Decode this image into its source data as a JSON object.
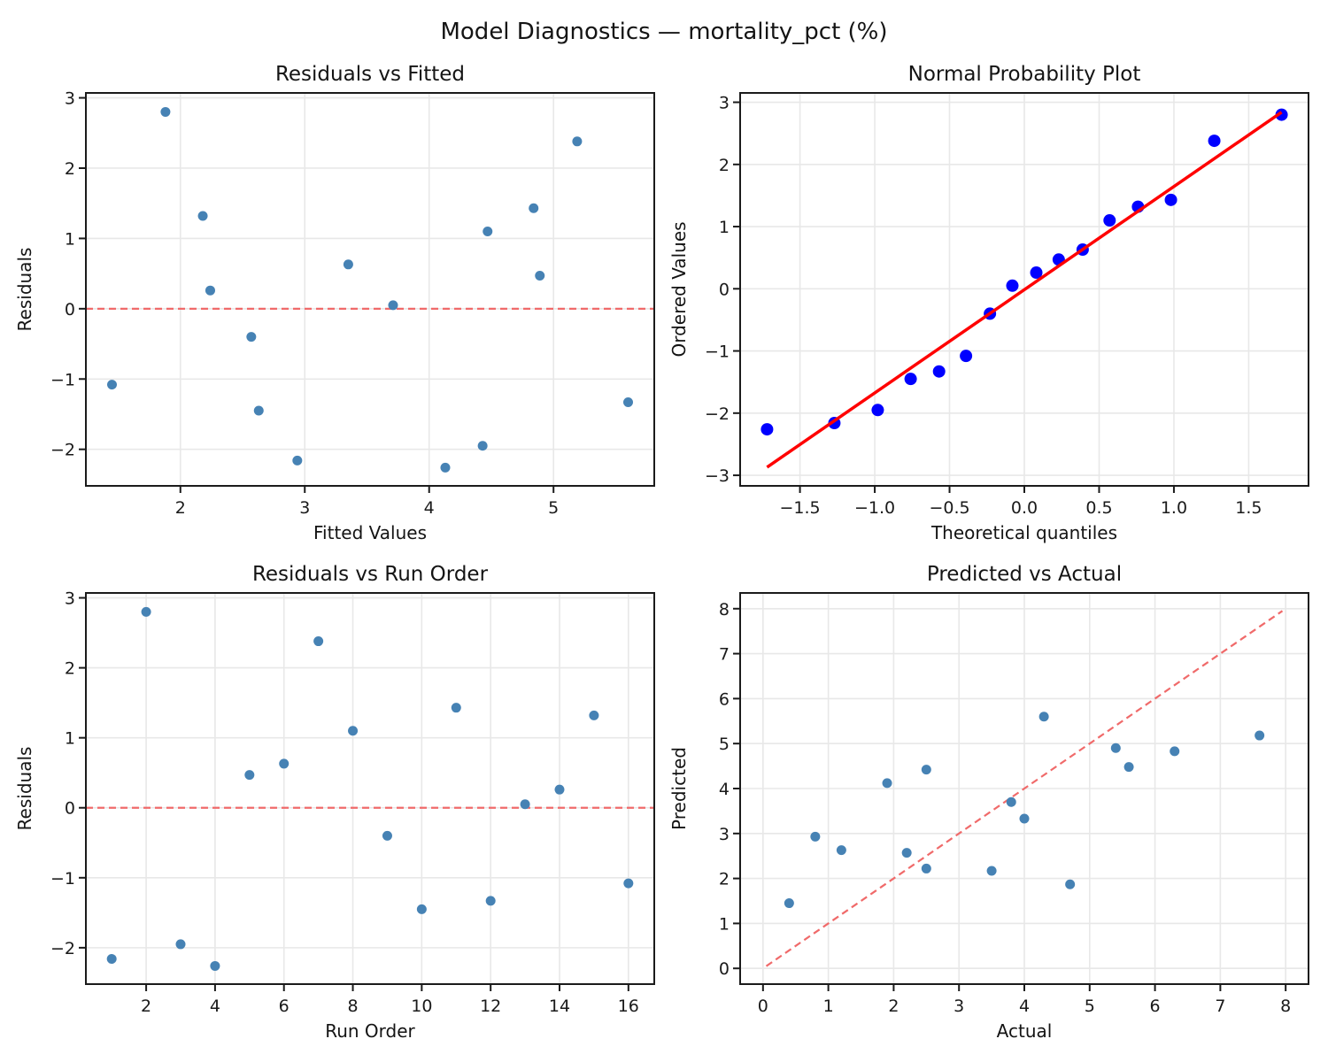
{
  "figure": {
    "suptitle": "Model Diagnostics — mortality_pct (%)",
    "colors": {
      "background": "#FFFFFF",
      "scatter_blue": "#4682B4",
      "qq_marker_blue": "#0000FF",
      "qq_line_red": "#FF0000",
      "refline_red": "#F06A6A",
      "grid": "#E8E8E8",
      "frame": "#1B1B1B",
      "text": "#141414"
    }
  },
  "chart_data": [
    {
      "id": "residuals-vs-fitted",
      "type": "scatter",
      "title": "Residuals vs Fitted",
      "xlabel": "Fitted Values",
      "ylabel": "Residuals",
      "xlim": [
        1.24,
        5.81
      ],
      "ylim": [
        -2.52,
        3.07
      ],
      "xticks": [
        2,
        3,
        4,
        5
      ],
      "xtick_labels": [
        "2",
        "3",
        "4",
        "5"
      ],
      "yticks": [
        -2,
        -1,
        0,
        1,
        2,
        3
      ],
      "ytick_labels": [
        "−2",
        "−1",
        "0",
        "1",
        "2",
        "3"
      ],
      "grid": true,
      "legend": null,
      "marker": {
        "shape": "circle",
        "color": "#4682B4",
        "radius": 5.5
      },
      "points": [
        [
          2.94,
          -2.16
        ],
        [
          1.88,
          2.8
        ],
        [
          4.43,
          -1.95
        ],
        [
          4.13,
          -2.26
        ],
        [
          4.89,
          0.47
        ],
        [
          3.35,
          0.63
        ],
        [
          5.19,
          2.38
        ],
        [
          4.47,
          1.1
        ],
        [
          2.57,
          -0.4
        ],
        [
          2.63,
          -1.45
        ],
        [
          4.84,
          1.43
        ],
        [
          5.6,
          -1.33
        ],
        [
          3.71,
          0.05
        ],
        [
          2.24,
          0.26
        ],
        [
          2.18,
          1.32
        ],
        [
          1.45,
          -1.08
        ]
      ],
      "lines": [
        {
          "name": "zero-line",
          "from": [
            1.24,
            0
          ],
          "to": [
            5.81,
            0
          ],
          "color": "#F06A6A",
          "width": 2.2,
          "dash": "8 5",
          "on_top": false
        }
      ]
    },
    {
      "id": "normal-probability-plot",
      "type": "scatter",
      "title": "Normal Probability Plot",
      "xlabel": "Theoretical quantiles",
      "ylabel": "Ordered Values",
      "xlim": [
        -1.9,
        1.9
      ],
      "ylim": [
        -3.17,
        3.15
      ],
      "xticks": [
        -1.5,
        -1.0,
        -0.5,
        0.0,
        0.5,
        1.0,
        1.5
      ],
      "xtick_labels": [
        "−1.5",
        "−1.0",
        "−0.5",
        "0.0",
        "0.5",
        "1.0",
        "1.5"
      ],
      "yticks": [
        -3,
        -2,
        -1,
        0,
        1,
        2,
        3
      ],
      "ytick_labels": [
        "−3",
        "−2",
        "−1",
        "0",
        "1",
        "2",
        "3"
      ],
      "grid": true,
      "legend": null,
      "marker": {
        "shape": "circle",
        "color": "#0000FF",
        "radius": 7
      },
      "points": [
        [
          -1.72,
          -2.26
        ],
        [
          -1.27,
          -2.16
        ],
        [
          -0.98,
          -1.95
        ],
        [
          -0.76,
          -1.45
        ],
        [
          -0.57,
          -1.33
        ],
        [
          -0.39,
          -1.08
        ],
        [
          -0.23,
          -0.4
        ],
        [
          -0.08,
          0.05
        ],
        [
          0.08,
          0.26
        ],
        [
          0.23,
          0.47
        ],
        [
          0.39,
          0.63
        ],
        [
          0.57,
          1.1
        ],
        [
          0.76,
          1.32
        ],
        [
          0.98,
          1.43
        ],
        [
          1.27,
          2.38
        ],
        [
          1.72,
          2.8
        ]
      ],
      "lines": [
        {
          "name": "fit-line",
          "from": [
            -1.72,
            -2.87
          ],
          "to": [
            1.72,
            2.84
          ],
          "color": "#FF0000",
          "width": 3.5,
          "dash": null,
          "on_top": true
        }
      ]
    },
    {
      "id": "residuals-vs-run-order",
      "type": "scatter",
      "title": "Residuals vs Run Order",
      "xlabel": "Run Order",
      "ylabel": "Residuals",
      "xlim": [
        0.25,
        16.75
      ],
      "ylim": [
        -2.52,
        3.07
      ],
      "xticks": [
        2,
        4,
        6,
        8,
        10,
        12,
        14,
        16
      ],
      "xtick_labels": [
        "2",
        "4",
        "6",
        "8",
        "10",
        "12",
        "14",
        "16"
      ],
      "yticks": [
        -2,
        -1,
        0,
        1,
        2,
        3
      ],
      "ytick_labels": [
        "−2",
        "−1",
        "0",
        "1",
        "2",
        "3"
      ],
      "grid": true,
      "legend": null,
      "marker": {
        "shape": "circle",
        "color": "#4682B4",
        "radius": 5.5
      },
      "points": [
        [
          1,
          -2.16
        ],
        [
          2,
          2.8
        ],
        [
          3,
          -1.95
        ],
        [
          4,
          -2.26
        ],
        [
          5,
          0.47
        ],
        [
          6,
          0.63
        ],
        [
          7,
          2.38
        ],
        [
          8,
          1.1
        ],
        [
          9,
          -0.4
        ],
        [
          10,
          -1.45
        ],
        [
          11,
          1.43
        ],
        [
          12,
          -1.33
        ],
        [
          13,
          0.05
        ],
        [
          14,
          0.26
        ],
        [
          15,
          1.32
        ],
        [
          16,
          -1.08
        ]
      ],
      "lines": [
        {
          "name": "zero-line",
          "from": [
            0.25,
            0
          ],
          "to": [
            16.75,
            0
          ],
          "color": "#F06A6A",
          "width": 2.2,
          "dash": "8 5",
          "on_top": false
        }
      ]
    },
    {
      "id": "predicted-vs-actual",
      "type": "scatter",
      "title": "Predicted vs Actual",
      "xlabel": "Actual",
      "ylabel": "Predicted",
      "xlim": [
        -0.35,
        8.35
      ],
      "ylim": [
        -0.35,
        8.35
      ],
      "xticks": [
        0,
        1,
        2,
        3,
        4,
        5,
        6,
        7,
        8
      ],
      "xtick_labels": [
        "0",
        "1",
        "2",
        "3",
        "4",
        "5",
        "6",
        "7",
        "8"
      ],
      "yticks": [
        0,
        1,
        2,
        3,
        4,
        5,
        6,
        7,
        8
      ],
      "ytick_labels": [
        "0",
        "1",
        "2",
        "3",
        "4",
        "5",
        "6",
        "7",
        "8"
      ],
      "grid": true,
      "legend": null,
      "marker": {
        "shape": "circle",
        "color": "#4682B4",
        "radius": 5.5
      },
      "points": [
        [
          0.8,
          2.93
        ],
        [
          4.7,
          1.87
        ],
        [
          2.5,
          4.42
        ],
        [
          1.9,
          4.12
        ],
        [
          5.4,
          4.9
        ],
        [
          4.0,
          3.33
        ],
        [
          7.6,
          5.18
        ],
        [
          5.6,
          4.48
        ],
        [
          2.2,
          2.57
        ],
        [
          1.2,
          2.63
        ],
        [
          6.3,
          4.83
        ],
        [
          4.3,
          5.6
        ],
        [
          3.8,
          3.7
        ],
        [
          2.5,
          2.22
        ],
        [
          3.5,
          2.17
        ],
        [
          0.4,
          1.45
        ]
      ],
      "lines": [
        {
          "name": "identity-line",
          "from": [
            0.05,
            0.05
          ],
          "to": [
            7.95,
            7.95
          ],
          "color": "#F06A6A",
          "width": 2.2,
          "dash": "8 5",
          "on_top": false
        }
      ]
    }
  ]
}
